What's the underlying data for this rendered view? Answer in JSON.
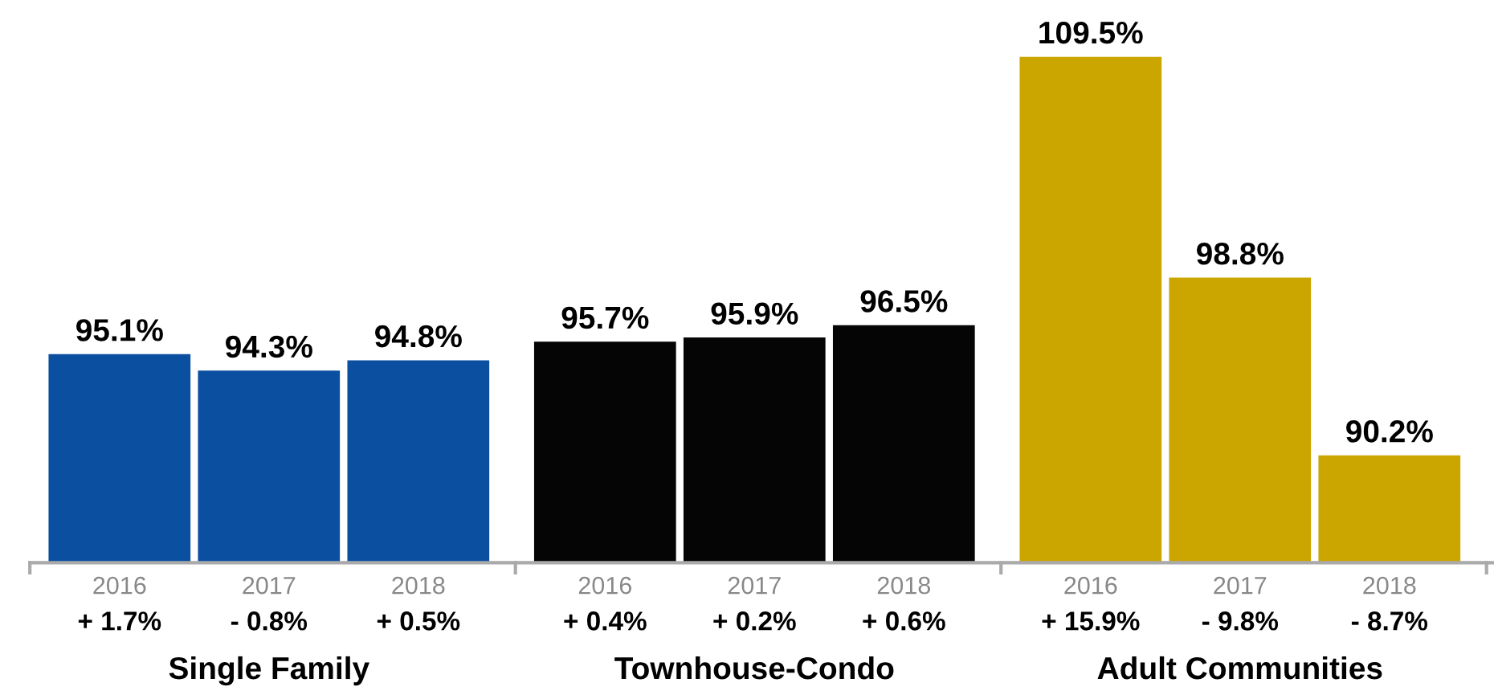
{
  "chart_data": {
    "type": "bar",
    "categories": [
      "2016",
      "2017",
      "2018",
      "2016",
      "2017",
      "2018",
      "2016",
      "2017",
      "2018"
    ],
    "values": [
      95.1,
      94.3,
      94.8,
      95.7,
      95.9,
      96.5,
      109.5,
      98.8,
      90.2
    ],
    "value_labels": [
      "95.1%",
      "94.3%",
      "94.8%",
      "95.7%",
      "95.9%",
      "96.5%",
      "109.5%",
      "98.8%",
      "90.2%"
    ],
    "colors": [
      "#0b4fa1",
      "#0b4fa1",
      "#0b4fa1",
      "#050505",
      "#050505",
      "#050505",
      "#cba500",
      "#cba500",
      "#cba500"
    ],
    "ylim": [
      85,
      109.5
    ],
    "tick_labels": "x",
    "grid": false,
    "annotations": [
      "+ 1.7%",
      "- 0.8%",
      "+ 0.5%",
      "+ 0.4%",
      "+ 0.2%",
      "+ 0.6%",
      "+ 15.9%",
      "- 9.8%",
      "- 8.7%",
      "Single Family",
      "Townhouse-Condo",
      "Adult Communities"
    ]
  }
}
